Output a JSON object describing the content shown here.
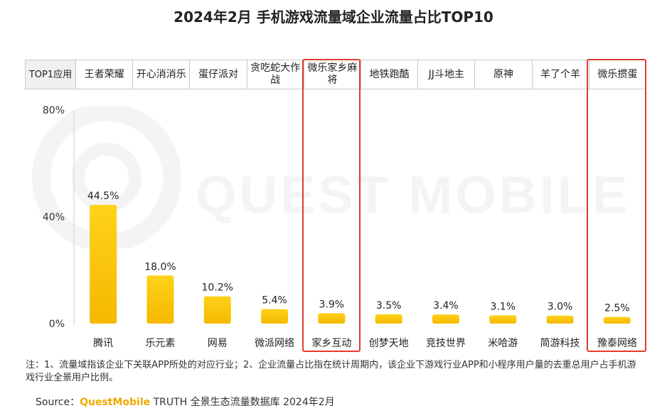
{
  "title": "2024年2月 手机游戏流量域企业流量占比TOP10",
  "watermark": "QUEST MOBILE",
  "top_app_header": "TOP1应用",
  "top_apps": [
    "王者荣耀",
    "开心消消乐",
    "蛋仔派对",
    "贪吃蛇大作战",
    "微乐家乡麻将",
    "地铁跑酷",
    "JJ斗地主",
    "原神",
    "羊了个羊",
    "微乐掼蛋"
  ],
  "highlighted_companies": [
    "家乡互动",
    "豫泰网络"
  ],
  "chart_data": {
    "type": "bar",
    "categories": [
      "腾讯",
      "乐元素",
      "网易",
      "微派网络",
      "家乡互动",
      "创梦天地",
      "竞技世界",
      "米哈游",
      "简游科技",
      "豫泰网络"
    ],
    "values": [
      44.5,
      18.0,
      10.2,
      5.4,
      3.9,
      3.5,
      3.4,
      3.1,
      3.0,
      2.5
    ],
    "value_labels": [
      "44.5%",
      "18.0%",
      "10.2%",
      "5.4%",
      "3.9%",
      "3.5%",
      "3.4%",
      "3.1%",
      "3.0%",
      "2.5%"
    ],
    "y_ticks": [
      0,
      40,
      80
    ],
    "y_tick_labels": [
      "0%",
      "40%",
      "80%"
    ],
    "ylim": [
      0,
      80
    ],
    "bar_color": "#f5b800",
    "grid": false
  },
  "note": "注：1、流量域指该企业下关联APP所处的对应行业；2、企业流量占比指在统计周期内，该企业下游戏行业APP和小程序用户量的去重总用户占手机游戏行业全景用户比例。",
  "source": {
    "prefix": "Source：",
    "brand": "QuestMobile",
    "suffix": " TRUTH 全景生态流量数据库 2024年2月"
  },
  "colors": {
    "highlight": "#e33b2e",
    "accent": "#f0a800"
  }
}
